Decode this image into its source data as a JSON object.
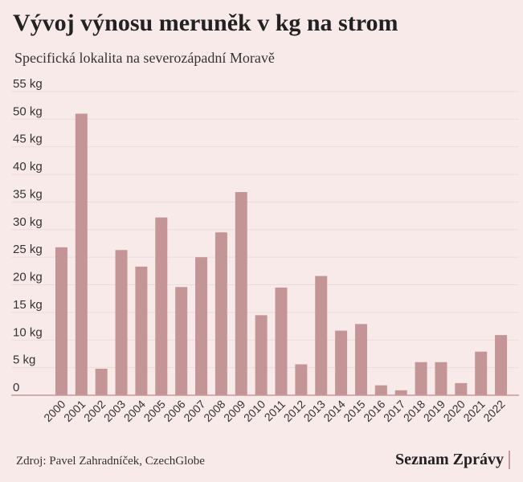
{
  "title": "Vývoj výnosu meruněk v kg na strom",
  "subtitle": "Specifická lokalita na severozápadní Moravě",
  "source": "Zdroj: Pavel Zahradníček, CzechGlobe",
  "brand": "Seznam Zprávy",
  "colors": {
    "bar": "#c49596",
    "axis": "#c89a9a",
    "grid": "#ecdada",
    "background": "#f9eaea"
  },
  "chart_data": {
    "type": "bar",
    "categories": [
      "2000",
      "2001",
      "2002",
      "2003",
      "2004",
      "2005",
      "2006",
      "2007",
      "2008",
      "2009",
      "2010",
      "2011",
      "2012",
      "2013",
      "2014",
      "2015",
      "2016",
      "2017",
      "2018",
      "2019",
      "2020",
      "2021",
      "2022"
    ],
    "values": [
      26.8,
      51,
      4.8,
      26.3,
      23.3,
      32.2,
      19.6,
      25,
      29.5,
      36.8,
      14.5,
      19.5,
      5.6,
      21.6,
      11.7,
      12.9,
      1.8,
      0.9,
      6,
      6,
      2.2,
      7.9,
      10.9
    ],
    "ylim": [
      0,
      55
    ],
    "yticks": [
      0,
      5,
      10,
      15,
      20,
      25,
      30,
      35,
      40,
      45,
      50,
      55
    ],
    "ytick_labels": [
      "0",
      "5 kg",
      "10 kg",
      "15 kg",
      "20 kg",
      "25 kg",
      "30 kg",
      "35 kg",
      "40 kg",
      "45 kg",
      "50 kg",
      "55 kg"
    ],
    "grid": true
  }
}
